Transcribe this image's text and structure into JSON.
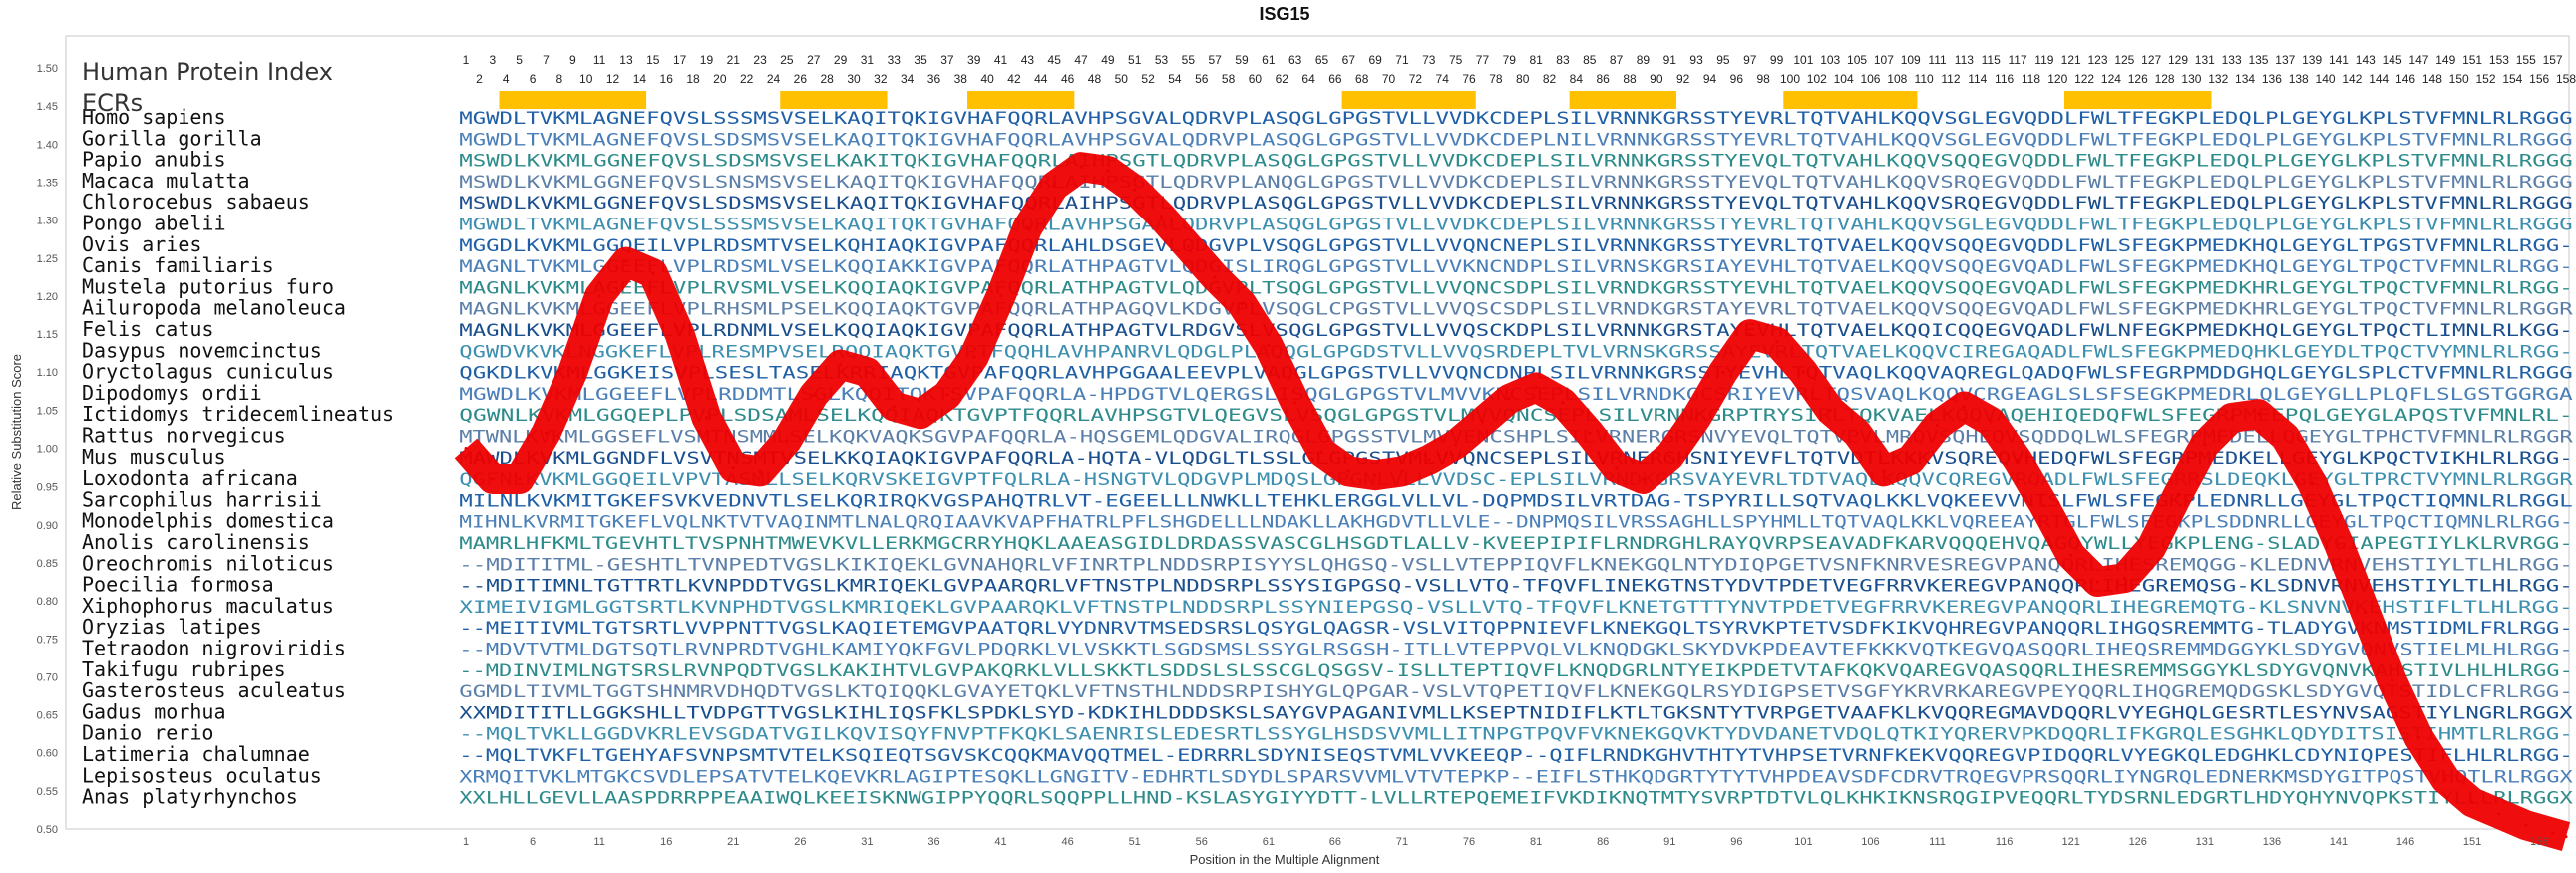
{
  "chart_data": {
    "type": "line",
    "title": "ISG15",
    "xlabel": "Position in the Multiple Alignment",
    "ylabel": "Relative Substitution Score",
    "ylim": [
      0.5,
      1.5
    ],
    "xlim": [
      1,
      158
    ],
    "y_ticks": [
      "0.50",
      "0.55",
      "0.60",
      "0.65",
      "0.70",
      "0.75",
      "0.80",
      "0.85",
      "0.90",
      "0.95",
      "1.00",
      "1.05",
      "1.10",
      "1.15",
      "1.20",
      "1.25",
      "1.30",
      "1.35",
      "1.40",
      "1.45",
      "1.50"
    ],
    "x_ticks": [
      "1",
      "6",
      "11",
      "16",
      "21",
      "26",
      "31",
      "36",
      "41",
      "46",
      "51",
      "56",
      "61",
      "66",
      "71",
      "76",
      "81",
      "86",
      "91",
      "96",
      "101",
      "106",
      "111",
      "116",
      "121",
      "126",
      "131",
      "136",
      "141",
      "146",
      "151",
      "156"
    ],
    "index_label": "Human Protein Index",
    "ecr_label": "ECRs",
    "human_index_odd": [
      "1",
      "3",
      "5",
      "7",
      "9",
      "11",
      "13",
      "15",
      "17",
      "19",
      "21",
      "23",
      "25",
      "27",
      "29",
      "31",
      "33",
      "35",
      "37",
      "39",
      "41",
      "43",
      "45",
      "47",
      "49",
      "51",
      "53",
      "55",
      "57",
      "59",
      "61",
      "63",
      "65",
      "67",
      "69",
      "71",
      "73",
      "75",
      "77",
      "79",
      "81",
      "83",
      "85",
      "87",
      "89",
      "91",
      "93",
      "95",
      "97",
      "99",
      "101",
      "103",
      "105",
      "107",
      "109",
      "111",
      "113",
      "115",
      "117",
      "119",
      "121",
      "123",
      "125",
      "127",
      "129",
      "131",
      "133",
      "135",
      "137",
      "139",
      "141",
      "143",
      "145",
      "147",
      "149",
      "151",
      "153",
      "155",
      "157"
    ],
    "human_index_even": [
      "2",
      "4",
      "6",
      "8",
      "10",
      "12",
      "14",
      "16",
      "18",
      "20",
      "22",
      "24",
      "26",
      "28",
      "30",
      "32",
      "34",
      "36",
      "38",
      "40",
      "42",
      "44",
      "46",
      "48",
      "50",
      "52",
      "54",
      "56",
      "58",
      "60",
      "62",
      "64",
      "66",
      "68",
      "70",
      "72",
      "74",
      "76",
      "78",
      "80",
      "82",
      "84",
      "86",
      "88",
      "90",
      "92",
      "94",
      "96",
      "98",
      "100",
      "102",
      "104",
      "106",
      "108",
      "110",
      "112",
      "114",
      "116",
      "118",
      "120",
      "122",
      "124",
      "126",
      "128",
      "130",
      "132",
      "134",
      "136",
      "138",
      "140",
      "142",
      "144",
      "146",
      "148",
      "150",
      "152",
      "154",
      "156",
      "158"
    ],
    "ecrs": [
      [
        3.5,
        14.5
      ],
      [
        24.5,
        32.5
      ],
      [
        38.5,
        46.5
      ],
      [
        66.5,
        76.5
      ],
      [
        83.5,
        91.5
      ],
      [
        99.5,
        109.5
      ],
      [
        120.5,
        131.5
      ]
    ],
    "series": [
      {
        "x": [
          1,
          3,
          5,
          7,
          9,
          11,
          13,
          15,
          17,
          19,
          21,
          23,
          25,
          27,
          29,
          31,
          33,
          35,
          37,
          39,
          41,
          43,
          45,
          47,
          49,
          51,
          53,
          55,
          57,
          59,
          61,
          63,
          65,
          67,
          69,
          71,
          73,
          75,
          77,
          79,
          81,
          83,
          85,
          87,
          89,
          91,
          93,
          95,
          97,
          99,
          101,
          103,
          105,
          107,
          109,
          111,
          113,
          115,
          117,
          119,
          121,
          123,
          125,
          127,
          129,
          131,
          133,
          135,
          137,
          139,
          141,
          143,
          145,
          147,
          149,
          151,
          153,
          155,
          157,
          158
        ],
        "y": [
          1.0,
          0.96,
          0.96,
          1.02,
          1.1,
          1.2,
          1.245,
          1.23,
          1.15,
          1.04,
          0.975,
          0.97,
          1.01,
          1.07,
          1.11,
          1.1,
          1.055,
          1.045,
          1.07,
          1.12,
          1.2,
          1.29,
          1.345,
          1.37,
          1.365,
          1.34,
          1.305,
          1.265,
          1.225,
          1.19,
          1.135,
          1.06,
          0.995,
          0.97,
          0.965,
          0.97,
          0.985,
          1.005,
          1.035,
          1.065,
          1.08,
          1.06,
          1.02,
          0.975,
          0.96,
          0.99,
          1.04,
          1.1,
          1.15,
          1.14,
          1.1,
          1.05,
          1.02,
          0.97,
          0.985,
          1.03,
          1.055,
          1.035,
          0.985,
          0.925,
          0.86,
          0.825,
          0.83,
          0.87,
          0.94,
          1.005,
          1.04,
          1.045,
          1.015,
          0.955,
          0.875,
          0.785,
          0.695,
          0.62,
          0.565,
          0.535,
          0.52,
          0.505,
          0.495,
          0.49
        ]
      }
    ],
    "alignment": [
      {
        "species": "Homo sapiens",
        "seq": "MGWDLTVKMLAGNEFQVSLSSSMSVSELKAQITQKIGVHAFQQRLAVHPSGVALQDRVPLASQGLGPGSTVLLVVDKCDEPLSILVRNNKGRSSTYEVRLTQTVAHLKQQVSGLEGVQDDLFWLTFEGKPLEDQLPLGEYGLKPLSTVFMNLRLRGGG"
      },
      {
        "species": "Gorilla gorilla",
        "seq": "MGWDLTVKMLAGNEFQVSLSDSMSVSELKAQITQKIGVHAFQQRLAVHPSGVALQDRVPLASQGLGPGSTVLLVVDKCDEPLNILVRNNKGRSSTYEVRLTQTVAHLKQQVSGLEGVQDDLFWLTFEGKPLEDQLPLGEYGLKPLSTVFMNLRLRGGG"
      },
      {
        "species": "Papio anubis",
        "seq": "MSWDLKVKMLGGNEFQVSLSDSMSVSELKAKITQKIGVHAFQQRLAIHPSGTLQDRVPLASQGLGPGSTVLLVVDKCDEPLSILVRNNKGRSSTYEVQLTQTVAHLKQQVSQQEGVQDDLFWLTFEGKPLEDQLPLGEYGLKPLSTVFMNLRLRGGG"
      },
      {
        "species": "Macaca mulatta",
        "seq": "MSWDLKVKMLGGNEFQVSLSNSMSVSELKAQITQKIGVHAFQQRLAIHPSGTLQDRVPLANQGLGPGSTVLLVVDKCDEPLSILVRNNKGRSSTYEVQLTQTVAHLKQQVSRQEGVQDDLFWLTFEGKPLEDQLPLGEYGLKPLSTVFMNLRLRGGG"
      },
      {
        "species": "Chlorocebus sabaeus",
        "seq": "MSWDLKVKMLGGNEFQVSLSDSMSVSELKAQITQKIGVHAFQQRLAIHPSGTLQDRVPLASQGLGPGSTVLLVVDKCDEPLSILVRNNKGRSSTYEVQLTQTVAHLKQQVSRQEGVQDDLFWLTFEGKPLEDQLPLGEYGLKPLSTVFMNLRLRGGG"
      },
      {
        "species": "Pongo abelii",
        "seq": "MGWDLTVKMLAGNEFQVSLSSSMSVSELKAQITQKTGVHAFQQRLAVHPSGAALQDRVPLASQGLGPGSTVLLVVDKCDEPLSILVRNNKGRSSTYEVRLTQTVAHLKQQVSGLEGVQDDLFWLTFEGKPLEDQLPLGEYGLKPLSTVFMNLRLRGGG"
      },
      {
        "species": "Ovis aries",
        "seq": "MGGDLKVKMLGGQEILVPLRDSMTVSELKQHIAQKIGVPAFQQRLAHLDSGEVLQDGVPLVSQGLGPGSTVLLVVQNCNEPLSILVRNNKGRSSTYEVRLTQTVAELKQQVSQQEGVQDDLFWLSFEGKPMEDKHQLGEYGLTPGSTVFMNLRLRGG-"
      },
      {
        "species": "Canis familiaris",
        "seq": "MAGNLTVKMLGGEEFLVPLRDSMLVSELKQQIAKKIGVPAFQQRLATHPAGTVLQDGISLIRQGLGPGSTVLLVVKNCNDPLSILVRNSKGRSIAYEVHLTQTVAELKQQVSQQEGVQADLFWLSFEGKPMEDKHQLGEYGLTPQCTVFMNLRLRGG-"
      },
      {
        "species": "Mustela putorius furo",
        "seq": "MAGNLKVKMLAGEEFLVPLRVSMLVSELKQQIAQKIGVPAFQQRLATHPAGTVLQDGVPLTSQGLGPGSTVLLVVQNCSDPLSILVRNDKGRSSTYEVHLTQTVAELKQQVSQQEGVQADLFWLSFEGKPMEDKHRLGEYGLTPQCTVFMNLRLRGG-"
      },
      {
        "species": "Ailuropoda melanoleuca",
        "seq": "MAGNLKVKMLGGEEFLVPLRHSMLPSELKQQIAQKTGVPAFQQRLATHPAGQVLKDGVPLVSQGLCPGSTVLLVVQSCSDPLSILVRNDKGRSTAYEVRLTQTVAELKQQVSQQEGVQADLFWLSFEGKPMEDKHRLGEYGLTPQCTVFMNLRLRGGR"
      },
      {
        "species": "Felis catus",
        "seq": "MAGNLKVKMLGGEEFLVPLRDNMLVSELKQQIAQKIGVPAFQQRLATHPAGTVLRDGVSLVSQGLGPGSTVLLVVQSCKDPLSILVRNNKGRSTAYEVHLTQTVAELKQQICQQEGVQADLFWLNFEGKPMEDKHQLGEYGLTPQCTLIMNLRLKGG-"
      },
      {
        "species": "Dasypus novemcinctus",
        "seq": "QGWDVKVKLNGGKEFLVPLRESMPVSELRQQIAQKTGVPTFQQHLAVHPANRVLQDGLPLAQQGLGPGDSTVLLVVQSRDEPLTVLVRNSKGRSSAYEVRLTQTVAELKQQVCIREGAQADLFWLSFEGKPMEDQHKLGEYDLTPQCTVYMNLRLRGG-"
      },
      {
        "species": "Oryctolagus cuniculus",
        "seq": "QGKDLKVKMLGGKEISVPLSESLTASELKRRIAQKTGVPAFQQRLAVHPGGAALEEVPLVAQGLGPGSTVLLVVQNCDNPLSILVRNNKGRSSTYEVHLTQTVAQLKQQVAQREGLQADQFWLSFEGRPMDDGHQLGEYGLSPLCTVFMNLRLRGGG"
      },
      {
        "species": "Dipodomys ordii",
        "seq": "MGWDLKVKMLGGEEFLVPLRDDMTLSGLKQQITQKTSVPAFQQRLA-HPDGTVLQERGSLISQGLGPGSTVLMVVKNCSEPLSILVRNDKGCSRIYEVRLTQSVAQLKQQVCRGEAGLSLSFSEGKPMEDRLQLGEYGLLPLQFLSLGSTGGRGA"
      },
      {
        "species": "Ictidomys tridecemlineatus",
        "seq": "QGWNLKVKMLGGQEPLPVPLSDSAMLSELKQQIAQKTGVPTFQQRLAVHPSGTVLQEGVSLVSQGLGPGSTVLMVVQNCSEPLSILVRNNKGRPTRYSIRLTQKVAELKQQVAQEHIQEDQFWLSFEGRPMEEPQLGEYGLAPQSTVFMNLRL-"
      },
      {
        "species": "Rattus norvegicus",
        "seq": "MTWNLKVKMLGGSEFLVSMTNSMMLSELKQKVAQKSGVPAFQQRLA-HQSGEMLQDGVALIRQGLGPGSSTVLMVVENCSHPLSILVRNERGRSNVYEVQLTQTVEVLMRQVSQHEQVSQDDQLWLSFEGRPMEDELLQGEYGLTPHCTVFMNLRLRGGR"
      },
      {
        "species": "Mus musculus",
        "seq": "MAWDLKVKMLGGNDFLVSVTNSMTVSELKKQIAQKIGVPAFQQRLA-HQTA-VLQDGLTLSSLGLGPGSTVMLVVQNCSEPLSILVRNERGHSNIYEVFLTQTVDTLKKKVSQREQVHEDQFWLSFEGRPMEDKELLGEYGLKPQCTVIKHLRLRGG-"
      },
      {
        "species": "Loxodonta africana",
        "seq": "QGFNLKVKMLGGQEILVPVTASMLLSELKQRVSKEIGVPTFQLRLA-HSNGTVLQDGVPLMDQSLGPGNLVLLVVDSC-EPLSILVRNDKGRSVAYEVRLTDTVAQLKQQVCQREGVRQADLFWLSFEGRRSLDEQKLGEYGLTPRCTVYMNLRLRGGR"
      },
      {
        "species": "Sarcophilus harrisii",
        "seq": "MILNLKVKMITGKEFSVKVEDNVTLSELKQRIRQKVGSPAHQTRLVT-EGEELLLNWKLLTEHKLERGGLVLLVL-DQPMDSILVRTDAG-TSPYRILLSQTVAQLKKLVQKEEVVNTSLFWLSFEGKPLEDNRLLGEYGLTPQCTIQMNLRLRGGL"
      },
      {
        "species": "Monodelphis domestica",
        "seq": "MIHNLKVRMITGKEFLVQLNKTVTVAQINMTLNALQRQIAAVKVAPFHATRLPFLSHGDELLLNDAKLLAKHGDVTLLVLE--DNPMQSILVRSSAGHLLSPYHMLLTQTVAQLKKLVQREEAYRTGLFWLSFEGKPLSDDNRLLGEYGLTPQCTIQMNLRLRGG-"
      },
      {
        "species": "Anolis carolinensis",
        "seq": "MAMRLHFKMLTGEVHTLTVSPNHTMWEVKVLLERKMGCRRYHQKLAAEASGIDLDRDASSVASCGLHSGDTLALLV-KVEEPIPIFLRNDRGHLRAYQVRPSEAVADFKARVQQQEHVQAGQYWLLYEGKPLENG-SLADYGIAPEGTIYLKLRVRGG-"
      },
      {
        "species": "Oreochromis niloticus",
        "seq": "--MDITITML-GESHTLTVNPEDTVGSLKIKIQEKLGVNAHQRLVFINRTPLNDDSRPISYYSLQHGSQ-VSLLVTEPPIQVFLKNEKGQLNTYDIQPGETVSNFKNRVESREGVPANQQRLIHESREMQGG-KLEDNVRNVEHSTIYLTLHLRGG-"
      },
      {
        "species": "Poecilia formosa",
        "seq": "--MDITIMNLTGTTRTLKVNPDDTVGSLKMRIQEKLGVPAARQRLVFTNSTPLNDDSRPLSSYSIGPGSQ-VSLLVTQ-TFQVFLINEKGTNSTYDVTPDETVEGFRRVKEREGVPANQQRLIHEGREMQSG-KLSDNVRNVEHSTIYLTLHLRGG-"
      },
      {
        "species": "Xiphophorus maculatus",
        "seq": "XIMEIVIGMLGGTSRTLKVNPHDTVGSLKMRIQEKLGVPAARQKLVFTNSTPLNDDSRPLSSYNIEPGSQ-VSLLVTQ-TFQVFLKNETGTTTYNVTPDETVEGFRRVKEREGVPANQQRLIHEGREMQTG-KLSNVNVKEHSTIFLTLHLRGG-"
      },
      {
        "species": "Oryzias latipes",
        "seq": "--MEITIVMLTGTSRTLVVPPNTTVGSLKAQIETEMGVPAATQRLVYDNRVTMSEDSRSLQSYGLQAGSR-VSLVITQPPNIEVFLKNEKGQLTSYRVKPTETVSDFKIKVQHREGVPANQQRLIHGQSREMMTG-TLADYGVKNMSTIDMLFRLRGG-"
      },
      {
        "species": "Tetraodon nigroviridis",
        "seq": "--MDVTVTMLDGTSQTLRVNPRDTVGHLKAMIYQKFGVLPDQRKLVLVSKKTLSGDSMSLSSYGLRSGSH-ITLLVTEPPVQLVLKNQDGKLSKYDVKPDEAVTEFKKKVQTKEGVQASQQRLIHEQSREMMDGGYKLSDYGVQNVSTIELMLHLRGG-"
      },
      {
        "species": "Takifugu rubripes",
        "seq": "--MDINVIMLNGTSRSLRVNPQDTVGSLKAKIHTVLGVPAKQRKLVLLSKKTLSDDSLSLSSCGLQSGSV-ISLLTEPTIQVFLKNQDGRLNTYEIKPDETVTAFKQKVQAREGVQASQQRLIHESREMMSGGYKLSDYGVQNVKAHSTIVLHLHLRGG-"
      },
      {
        "species": "Gasterosteus aculeatus",
        "seq": "GGMDLTIVMLTGGTSHNMRVDHQDTVGSLKTQIQQKLGVAYETQKLVFTNSTHLNDDSRPISHYGLQPGAR-VSLVTQPETIQVFLKNEKGQLRSYDIGPSETVSGFYKRVRKAREGVPEYQQRLIHQGREMQDGSKLSDYGVQTSTIDLCFRLRGG-"
      },
      {
        "species": "Gadus morhua",
        "seq": "XXMDITITLLGGKSHLLTVDPGTTVGSLKIHLIQSFKLSPDKLSYD-KDKIHLDDDSKSLSAYGVPAGANIVMLLKSEPTNIDIFLKTLTGKSNTYTVRPGETVAAFKLKVQQREGMAVDQQRLVYEGHQLGESRTLESYNVSAGSTIYLNGRLRGGX"
      },
      {
        "species": "Danio rerio",
        "seq": "--MQLTVKLLGGDVKRLEVSGDATVGILKQVISQYFNVPTFKQKLSAENRISLEDESRTLSSYGLHSDSVVMLLITNPGTPQVFVKNEKGQVKTYDVDANETVDQLQTKIYQRERVPKDQQRLIFKGRQLESGHKLQDYDITSISTIHMTLRLRGG-"
      },
      {
        "species": "Latimeria chalumnae",
        "seq": "--MQLTVKFLTGEHYAFSVNPSMTVTELKSQIEQTSGVSKCQQKMAVQQTMEL-EDRRRLSDYNISEQSTVMLVVKEEQP--QIFLRNDKGHVTHTYTVHPSETVRNFKEKVQQREGVPIDQQRLVYEGKQLEDGHKLCDYNIQPESTIFLHLRLRGG-"
      },
      {
        "species": "Lepisosteus oculatus",
        "seq": "XRMQITVKLMTGKCSVDLEPSATVTELKQEVKRLAGIPTESQKLLGNGITV-EDHRTLSDYDLSPARSVVMLVTVTEPKP--EIFLSTHKQDGRTYTYTVHPDEAVSDFCDRVTRQEGVPRSQQRLIYNGRQLEDNERKMSDYGITPQSTVHQTLRLRGGX"
      },
      {
        "species": "Anas platyrhynchos",
        "seq": "XXLHLLGEVLLAASPDRRPPEAAIWQLKEEISKNWGIPPYQQRLSQQPPLLHND-KSLASYGIYYDTT-LVLLRTEPQEMEIFVKDIKNQTMTYSVRPTDTVLQLKHKIKNSRQGIPVEQQRLTYDSRNLEDGRTLHDYQHYNVQPKSTIYLLLRLRGGX"
      }
    ]
  }
}
